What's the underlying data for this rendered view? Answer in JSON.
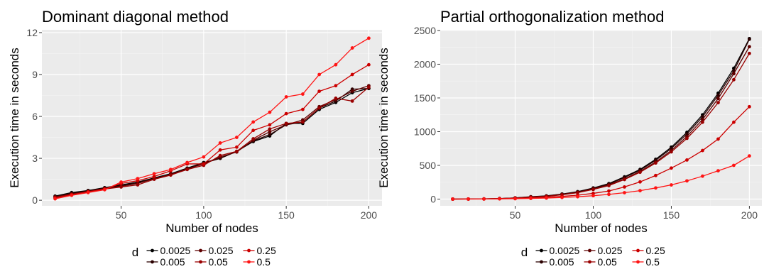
{
  "chart_data": [
    {
      "type": "line",
      "title": "Dominant diagonal method",
      "xlabel": "Number of nodes",
      "ylabel": "Execution time in seconds",
      "xlim": [
        2,
        208
      ],
      "ylim": [
        -0.4,
        12.2
      ],
      "xticks": [
        50,
        100,
        150,
        200
      ],
      "yticks": [
        0,
        3,
        6,
        9,
        12
      ],
      "grid": true,
      "legend_title": "d",
      "legend_position": "bottom",
      "x": [
        10,
        20,
        30,
        40,
        50,
        60,
        70,
        80,
        90,
        100,
        110,
        120,
        130,
        140,
        150,
        160,
        170,
        180,
        190,
        200
      ],
      "series": [
        {
          "name": "0.0025",
          "color": "#000000",
          "values": [
            0.3,
            0.55,
            0.7,
            0.9,
            1.1,
            1.3,
            1.6,
            1.9,
            2.3,
            2.7,
            3.0,
            3.5,
            4.2,
            4.6,
            5.5,
            5.5,
            6.5,
            7.0,
            7.7,
            8.0
          ]
        },
        {
          "name": "0.005",
          "color": "#2b0000",
          "values": [
            0.25,
            0.5,
            0.65,
            0.85,
            1.05,
            1.25,
            1.55,
            1.85,
            2.25,
            2.65,
            3.0,
            3.5,
            4.25,
            4.7,
            5.4,
            5.6,
            6.6,
            7.1,
            7.95,
            8.0
          ]
        },
        {
          "name": "0.025",
          "color": "#5e0000",
          "values": [
            0.25,
            0.45,
            0.65,
            0.85,
            1.0,
            1.2,
            1.55,
            1.85,
            2.25,
            2.6,
            3.1,
            3.45,
            4.3,
            4.9,
            5.4,
            5.75,
            6.7,
            7.2,
            7.8,
            8.2
          ]
        },
        {
          "name": "0.05",
          "color": "#990000",
          "values": [
            0.2,
            0.4,
            0.6,
            0.8,
            0.95,
            1.1,
            1.5,
            1.8,
            2.2,
            2.5,
            3.2,
            3.5,
            4.4,
            5.1,
            5.5,
            5.6,
            6.6,
            7.3,
            7.1,
            8.1
          ]
        },
        {
          "name": "0.25",
          "color": "#cc0000",
          "values": [
            0.15,
            0.4,
            0.6,
            0.8,
            1.2,
            1.4,
            1.7,
            2.1,
            2.6,
            2.6,
            3.6,
            3.8,
            5.0,
            5.4,
            6.2,
            6.5,
            7.8,
            8.2,
            9.0,
            9.7
          ]
        },
        {
          "name": "0.5",
          "color": "#ff1414",
          "values": [
            0.1,
            0.35,
            0.55,
            0.75,
            1.3,
            1.55,
            1.9,
            2.2,
            2.7,
            3.1,
            4.1,
            4.5,
            5.6,
            6.3,
            7.4,
            7.6,
            9.0,
            9.7,
            10.9,
            11.6
          ]
        }
      ]
    },
    {
      "type": "line",
      "title": "Partial orthogonalization method",
      "xlabel": "Number of nodes",
      "ylabel": "Execution time in seconds",
      "xlim": [
        2,
        208
      ],
      "ylim": [
        -100,
        2510
      ],
      "xticks": [
        50,
        100,
        150,
        200
      ],
      "yticks": [
        0,
        500,
        1000,
        1500,
        2000,
        2500
      ],
      "grid": true,
      "legend_title": "d",
      "legend_position": "bottom",
      "x": [
        10,
        20,
        30,
        40,
        50,
        60,
        70,
        80,
        90,
        100,
        110,
        120,
        130,
        140,
        150,
        160,
        170,
        180,
        190,
        200
      ],
      "series": [
        {
          "name": "0.0025",
          "color": "#000000",
          "values": [
            0,
            1,
            3,
            8,
            18,
            35,
            48,
            75,
            110,
            165,
            230,
            330,
            440,
            590,
            770,
            990,
            1250,
            1570,
            1940,
            2380
          ]
        },
        {
          "name": "0.005",
          "color": "#2b0000",
          "values": [
            0,
            1,
            3,
            8,
            17,
            33,
            46,
            72,
            106,
            160,
            222,
            320,
            428,
            575,
            750,
            965,
            1220,
            1540,
            1900,
            2370
          ]
        },
        {
          "name": "0.025",
          "color": "#5e0000",
          "values": [
            0,
            1,
            3,
            7,
            16,
            31,
            43,
            68,
            100,
            150,
            210,
            300,
            410,
            550,
            720,
            930,
            1180,
            1490,
            1860,
            2260
          ]
        },
        {
          "name": "0.05",
          "color": "#990000",
          "values": [
            0,
            1,
            2,
            7,
            15,
            29,
            40,
            64,
            95,
            143,
            200,
            290,
            398,
            535,
            700,
            900,
            1140,
            1430,
            1770,
            2160
          ]
        },
        {
          "name": "0.25",
          "color": "#cc0000",
          "values": [
            0,
            1,
            2,
            5,
            10,
            18,
            27,
            40,
            58,
            85,
            120,
            180,
            255,
            350,
            460,
            580,
            720,
            890,
            1140,
            1370
          ]
        },
        {
          "name": "0.5",
          "color": "#ff1414",
          "values": [
            0,
            0,
            1,
            3,
            5,
            10,
            15,
            24,
            35,
            50,
            70,
            95,
            125,
            165,
            210,
            270,
            340,
            420,
            500,
            640
          ]
        }
      ]
    }
  ]
}
